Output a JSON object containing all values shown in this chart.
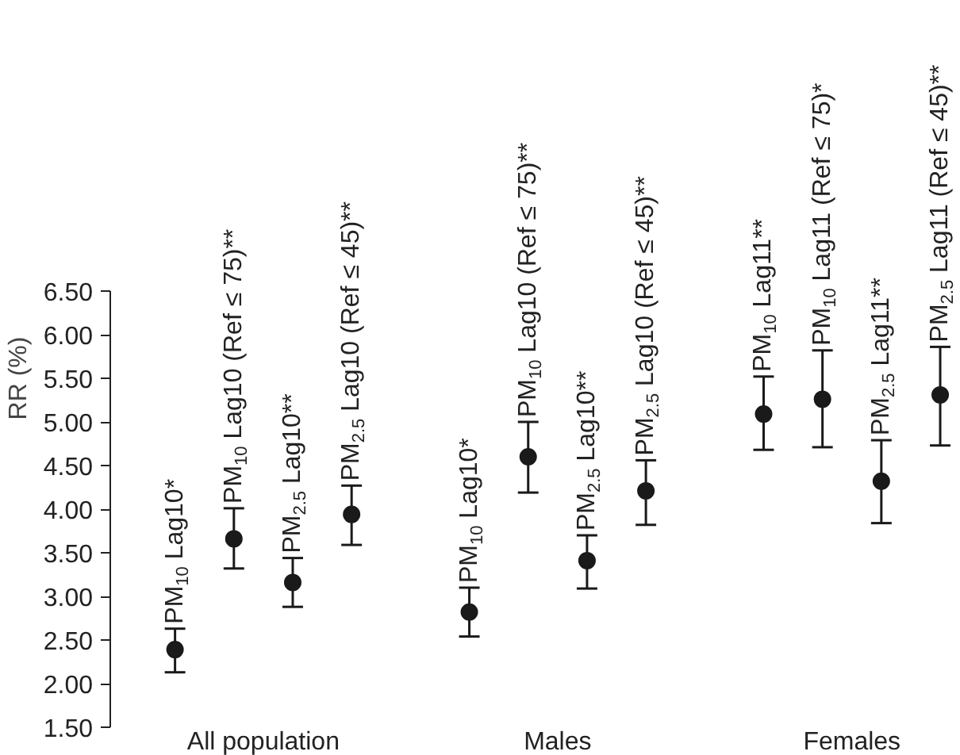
{
  "chart_data": {
    "type": "scatter",
    "ylabel": "RR (%)",
    "categories": [
      "All population",
      "Males",
      "Females"
    ],
    "series": [
      {
        "color": "#1a1a1a",
        "values": [
          2.39,
          2.82,
          5.09
        ],
        "errors": [
          [
            2.13,
            2.63
          ],
          [
            2.54,
            3.1
          ],
          [
            4.68,
            5.52
          ]
        ]
      },
      {
        "color": "#1a1a1a",
        "values": [
          3.66,
          4.6,
          5.26
        ],
        "errors": [
          [
            3.32,
            4.01
          ],
          [
            4.19,
            5.0
          ],
          [
            4.71,
            5.82
          ]
        ]
      },
      {
        "color": "#1a1a1a",
        "values": [
          3.16,
          3.41,
          4.32
        ],
        "errors": [
          [
            2.88,
            3.44
          ],
          [
            3.09,
            3.7
          ],
          [
            3.84,
            4.79
          ]
        ]
      },
      {
        "color": "#1a1a1a",
        "values": [
          3.94,
          4.21,
          5.31
        ],
        "errors": [
          [
            3.59,
            4.27
          ],
          [
            3.82,
            4.56
          ],
          [
            4.73,
            5.86
          ]
        ]
      }
    ],
    "annotations": [
      "PM$_{10}$ Lag10*",
      "PM$_{10}$ Lag10 (Ref ≤ 75)**",
      "PM$_{2.5}$ Lag10**",
      "PM$_{2.5}$ Lag10 (Ref ≤ 45)**",
      "PM$_{10}$ Lag10*",
      "PM$_{10}$ Lag10 (Ref ≤ 75)**",
      "PM$_{2.5}$ Lag10**",
      "PM$_{2.5}$ Lag10 (Ref ≤ 45)**",
      "PM$_{10}$ Lag11**",
      "PM$_{10}$ Lag11 (Ref ≤ 75)*",
      "PM$_{2.5}$ Lag11**",
      "PM$_{2.5}$ Lag11 (Ref ≤ 45)**"
    ],
    "marker": "circle",
    "grid": false,
    "ylim": [
      1.5,
      6.5
    ],
    "yticks": [
      {
        "value": 1.5,
        "label": "1.50"
      },
      {
        "value": 2.0,
        "label": "2.00"
      },
      {
        "value": 2.5,
        "label": "2.50"
      },
      {
        "value": 3.0,
        "label": "3.00"
      },
      {
        "value": 3.5,
        "label": "3.50"
      },
      {
        "value": 4.0,
        "label": "4.00"
      },
      {
        "value": 4.5,
        "label": "4.50"
      },
      {
        "value": 5.0,
        "label": "5.00"
      },
      {
        "value": 5.5,
        "label": "5.50"
      },
      {
        "value": 6.0,
        "label": "6.00"
      },
      {
        "value": 6.5,
        "label": "6.50"
      }
    ]
  }
}
